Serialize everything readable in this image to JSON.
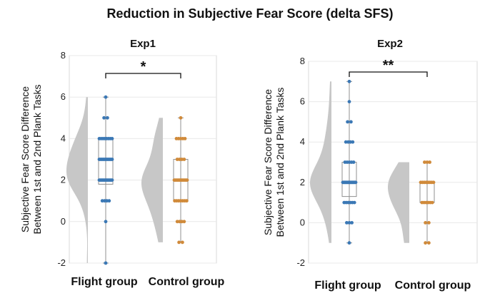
{
  "title": "Reduction in Subjective Fear Score (delta SFS)",
  "colors": {
    "flight": "#3b78b5",
    "control": "#d08a3a",
    "violin": "#c7c7c7",
    "box": "#909090"
  },
  "chart_data": [
    {
      "type": "scatter",
      "title": "Exp1",
      "ylabel": "Subjective Fear Score Difference\nBetween 1st and 2nd Plank Tasks",
      "ylim": [
        -2,
        8
      ],
      "yticks": [
        -2,
        0,
        2,
        4,
        6,
        8
      ],
      "grid": true,
      "categories": [
        "Flight group",
        "Control group"
      ],
      "significance": "*",
      "series": [
        {
          "name": "Flight group",
          "values": [
            -2,
            0,
            1,
            1,
            1,
            1,
            2,
            2,
            2,
            2,
            2,
            2,
            2,
            2,
            2,
            2,
            2,
            2,
            2,
            2,
            2,
            3,
            3,
            3,
            3,
            3,
            3,
            3,
            3,
            3,
            3,
            3,
            3,
            3,
            4,
            4,
            4,
            4,
            4,
            4,
            4,
            4,
            5,
            5,
            6
          ],
          "violin": {
            "min": -2,
            "max": 6
          },
          "box": {
            "q1": 1.8,
            "median": 3,
            "q3": 4
          }
        },
        {
          "name": "Control group",
          "values": [
            -1,
            -1,
            0,
            0,
            0,
            0,
            1,
            1,
            1,
            1,
            1,
            1,
            1,
            2,
            2,
            2,
            2,
            2,
            2,
            2,
            2,
            2,
            2,
            2,
            2,
            2,
            3,
            3,
            3,
            3,
            4,
            4,
            4,
            4,
            4,
            5
          ],
          "violin": {
            "min": -1,
            "max": 5
          },
          "box": {
            "q1": 1,
            "median": 2,
            "q3": 3
          }
        }
      ]
    },
    {
      "type": "scatter",
      "title": "Exp2",
      "ylabel": "Subjective Fear Score Difference\nBetween 1st and 2nd Plank Tasks",
      "ylim": [
        -2,
        8
      ],
      "yticks": [
        -2,
        0,
        2,
        4,
        6,
        8
      ],
      "grid": true,
      "categories": [
        "Flight group",
        "Control group"
      ],
      "significance": "**",
      "series": [
        {
          "name": "Flight group",
          "values": [
            -1,
            0,
            0,
            0,
            1,
            1,
            1,
            1,
            1,
            1,
            2,
            2,
            2,
            2,
            2,
            2,
            2,
            2,
            2,
            2,
            2,
            2,
            2,
            2,
            2,
            2,
            2,
            2,
            3,
            3,
            3,
            3,
            3,
            4,
            4,
            4,
            4,
            5,
            5,
            6,
            7
          ],
          "violin": {
            "min": -1,
            "max": 7
          },
          "box": {
            "q1": 1.3,
            "median": 2,
            "q3": 3
          }
        },
        {
          "name": "Control group",
          "values": [
            -1,
            -1,
            0,
            0,
            1,
            1,
            1,
            1,
            1,
            1,
            2,
            2,
            2,
            2,
            2,
            2,
            2,
            2,
            3,
            3,
            3
          ],
          "violin": {
            "min": -1,
            "max": 3
          },
          "box": {
            "q1": 1,
            "median": 2,
            "q3": 2
          }
        }
      ]
    }
  ]
}
